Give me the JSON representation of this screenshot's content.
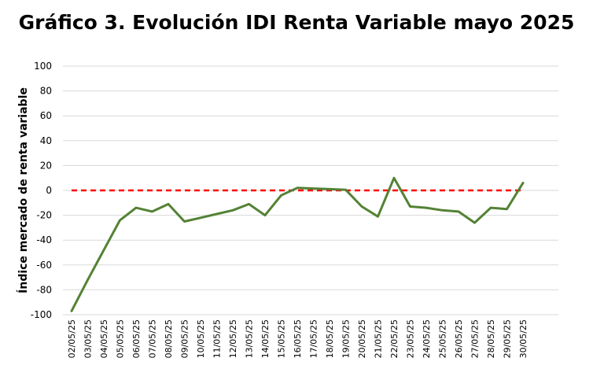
{
  "chart_data": {
    "type": "line",
    "title": "Gráfico 3. Evolución IDI Renta Variable mayo 2025",
    "ylabel": "Índice mercado de renta variable",
    "xlabel": "",
    "ylim": [
      -100,
      100
    ],
    "yticks": [
      100,
      80,
      60,
      40,
      20,
      0,
      -20,
      -40,
      -60,
      -80,
      -100
    ],
    "grid": true,
    "categories": [
      "02/05/25",
      "03/05/25",
      "04/05/25",
      "05/05/25",
      "06/05/25",
      "07/05/25",
      "08/05/25",
      "09/05/25",
      "10/05/25",
      "11/05/25",
      "12/05/25",
      "13/05/25",
      "14/05/25",
      "15/05/25",
      "16/05/25",
      "17/05/25",
      "18/05/25",
      "19/05/25",
      "20/05/25",
      "21/05/25",
      "22/05/25",
      "23/05/25",
      "24/05/25",
      "25/05/25",
      "26/05/25",
      "27/05/25",
      "28/05/25",
      "29/05/25",
      "30/05/25"
    ],
    "series": [
      {
        "color": "#548235",
        "values": [
          -97,
          -72,
          -48,
          -24,
          -14,
          -17,
          -11,
          -25,
          -22,
          -19,
          -16,
          -11,
          -20,
          -4,
          2,
          1.5,
          1,
          0.5,
          -13,
          -21,
          10,
          -13,
          -14,
          -16,
          -17,
          -26,
          -14,
          -15,
          6
        ]
      }
    ],
    "reference_line": {
      "value": 0,
      "color": "#ff0000",
      "style": "dashed"
    }
  }
}
